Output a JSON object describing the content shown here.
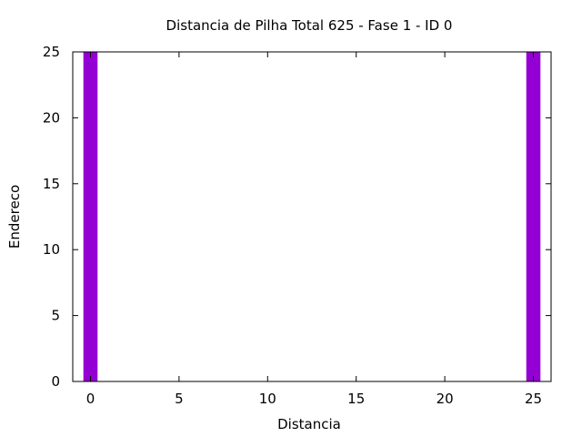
{
  "chart_data": {
    "type": "bar",
    "title": "Distancia de Pilha Total 625 - Fase  1 - ID 0",
    "xlabel": "Distancia",
    "ylabel": "Endereco",
    "xlim": [
      -1,
      26
    ],
    "ylim": [
      0,
      25
    ],
    "xticks": [
      "0",
      "5",
      "10",
      "15",
      "20",
      "25"
    ],
    "yticks": [
      "0",
      "5",
      "10",
      "15",
      "20",
      "25"
    ],
    "bar_color": "#9400d3",
    "grid": false,
    "series": [
      {
        "x": [
          0,
          25
        ],
        "values": [
          25,
          25
        ]
      }
    ]
  }
}
